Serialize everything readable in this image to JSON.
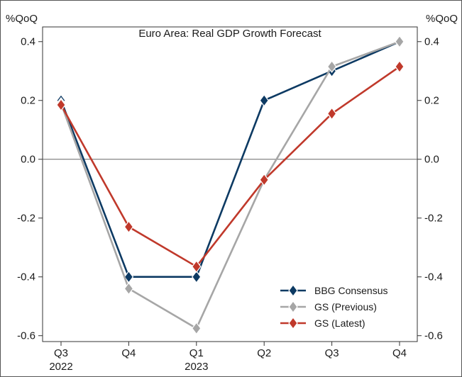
{
  "chart_data": {
    "type": "line",
    "title": "Euro Area: Real GDP Growth Forecast",
    "ylabel_left": "%QoQ",
    "ylabel_right": "%QoQ",
    "ylim": [
      -0.62,
      0.45
    ],
    "yticks": [
      "0.4",
      "0.2",
      "0.0",
      "-0.2",
      "-0.4",
      "-0.6"
    ],
    "ytick_values": [
      0.4,
      0.2,
      0.0,
      -0.2,
      -0.4,
      -0.6
    ],
    "categories": [
      {
        "quarter": "Q3",
        "year": "2022"
      },
      {
        "quarter": "Q4",
        "year": ""
      },
      {
        "quarter": "Q1",
        "year": "2023"
      },
      {
        "quarter": "Q2",
        "year": ""
      },
      {
        "quarter": "Q3",
        "year": ""
      },
      {
        "quarter": "Q4",
        "year": ""
      }
    ],
    "zero_line": true,
    "legend_position": "bottom-right",
    "series": [
      {
        "name": "BBG Consensus",
        "color": "#0d3a63",
        "values": [
          0.2,
          -0.4,
          -0.4,
          0.2,
          0.3,
          0.4
        ]
      },
      {
        "name": "GS (Previous)",
        "color": "#a6a6a6",
        "values": [
          0.19,
          -0.44,
          -0.575,
          -0.07,
          0.315,
          0.4
        ]
      },
      {
        "name": "GS (Latest)",
        "color": "#c0392b",
        "values": [
          0.185,
          -0.23,
          -0.365,
          -0.07,
          0.155,
          0.315
        ]
      }
    ]
  }
}
